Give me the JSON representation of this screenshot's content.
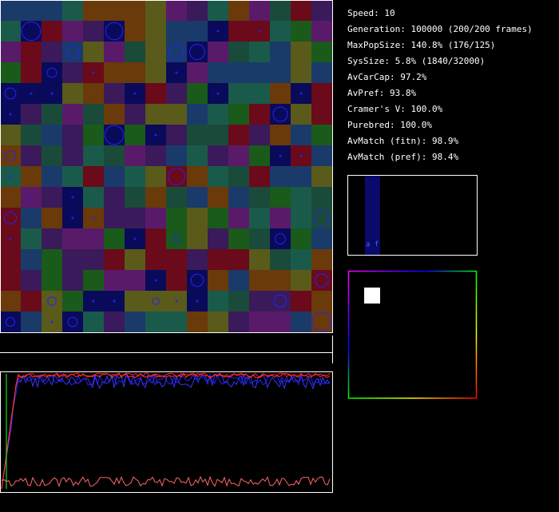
{
  "stats": [
    "Speed: 10",
    "Generation: 100000 (200/200 frames)",
    "MaxPopSize: 140.8% (176/125)",
    "SysSize: 5.8% (1840/32000)",
    "AvCarCap: 97.2%",
    "AvPref: 93.8%",
    "Cramer's V: 100.0%",
    "Purebred: 100.0%",
    "AvMatch (fitn): 98.9%",
    "AvMatch (pref): 98.4%"
  ],
  "histogram_label": "a f"
}
